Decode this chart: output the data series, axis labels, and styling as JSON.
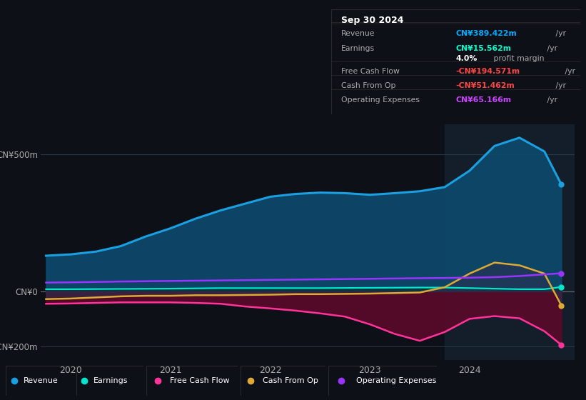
{
  "bg_color": "#0d1117",
  "plot_bg_color": "#0d1117",
  "title_box": {
    "title": "Sep 30 2024",
    "rows": [
      {
        "label": "Revenue",
        "value": "CN¥389.422m",
        "value_color": "#00aaff",
        "suffix": " /yr"
      },
      {
        "label": "Earnings",
        "value": "CN¥15.562m",
        "value_color": "#00ffcc",
        "suffix": " /yr"
      },
      {
        "label": "",
        "value": "4.0%",
        "value_color": "#ffffff",
        "suffix": " profit margin",
        "suffix_color": "#aaaaaa"
      },
      {
        "label": "Free Cash Flow",
        "value": "-CN¥194.571m",
        "value_color": "#ff4444",
        "suffix": " /yr"
      },
      {
        "label": "Cash From Op",
        "value": "-CN¥51.462m",
        "value_color": "#ff4444",
        "suffix": " /yr"
      },
      {
        "label": "Operating Expenses",
        "value": "CN¥65.166m",
        "value_color": "#cc44ff",
        "suffix": " /yr"
      }
    ]
  },
  "xmin": 2019.7,
  "xmax": 2025.05,
  "ymin": -250,
  "ymax": 610,
  "yticks": [
    -200,
    0,
    500
  ],
  "ytick_labels": [
    "-CN¥200m",
    "CN¥0",
    "CN¥500m"
  ],
  "xticks": [
    2020,
    2021,
    2022,
    2023,
    2024
  ],
  "series": {
    "revenue": {
      "color": "#1a9fe0",
      "fill_color": "#0d4a6e",
      "label": "Revenue",
      "x": [
        2019.75,
        2020.0,
        2020.25,
        2020.5,
        2020.75,
        2021.0,
        2021.25,
        2021.5,
        2021.75,
        2022.0,
        2022.25,
        2022.5,
        2022.75,
        2023.0,
        2023.25,
        2023.5,
        2023.75,
        2024.0,
        2024.25,
        2024.5,
        2024.75,
        2024.92
      ],
      "y": [
        130,
        135,
        145,
        165,
        200,
        230,
        265,
        295,
        320,
        345,
        355,
        360,
        358,
        352,
        358,
        365,
        380,
        440,
        530,
        560,
        510,
        390
      ]
    },
    "earnings": {
      "color": "#00e5cc",
      "label": "Earnings",
      "x": [
        2019.75,
        2020.0,
        2020.5,
        2021.0,
        2021.5,
        2022.0,
        2022.5,
        2023.0,
        2023.5,
        2023.75,
        2024.0,
        2024.25,
        2024.5,
        2024.75,
        2024.92
      ],
      "y": [
        8,
        8,
        9,
        10,
        12,
        12,
        12,
        13,
        14,
        14,
        12,
        10,
        8,
        8,
        16
      ]
    },
    "free_cash_flow": {
      "color": "#ff3399",
      "fill_color": "#5a0a2a",
      "label": "Free Cash Flow",
      "x": [
        2019.75,
        2020.0,
        2020.25,
        2020.5,
        2020.75,
        2021.0,
        2021.25,
        2021.5,
        2021.75,
        2022.0,
        2022.25,
        2022.5,
        2022.75,
        2023.0,
        2023.25,
        2023.5,
        2023.75,
        2024.0,
        2024.25,
        2024.5,
        2024.75,
        2024.92
      ],
      "y": [
        -45,
        -44,
        -42,
        -40,
        -40,
        -40,
        -42,
        -45,
        -55,
        -62,
        -70,
        -80,
        -92,
        -120,
        -155,
        -180,
        -148,
        -100,
        -90,
        -98,
        -145,
        -195
      ]
    },
    "cash_from_op": {
      "color": "#ddaa33",
      "label": "Cash From Op",
      "x": [
        2019.75,
        2020.0,
        2020.25,
        2020.5,
        2020.75,
        2021.0,
        2021.25,
        2021.5,
        2021.75,
        2022.0,
        2022.25,
        2022.5,
        2022.75,
        2023.0,
        2023.25,
        2023.5,
        2023.75,
        2024.0,
        2024.25,
        2024.5,
        2024.75,
        2024.92
      ],
      "y": [
        -28,
        -26,
        -22,
        -18,
        -16,
        -16,
        -14,
        -14,
        -13,
        -12,
        -10,
        -10,
        -9,
        -8,
        -6,
        -4,
        15,
        65,
        105,
        95,
        65,
        -51
      ]
    },
    "operating_expenses": {
      "color": "#9933ff",
      "label": "Operating Expenses",
      "x": [
        2019.75,
        2020.0,
        2020.5,
        2021.0,
        2021.5,
        2022.0,
        2022.5,
        2023.0,
        2023.5,
        2024.0,
        2024.25,
        2024.5,
        2024.75,
        2024.92
      ],
      "y": [
        32,
        33,
        36,
        38,
        40,
        42,
        44,
        46,
        48,
        50,
        52,
        56,
        62,
        66
      ]
    }
  },
  "legend_items": [
    {
      "label": "Revenue",
      "color": "#1a9fe0"
    },
    {
      "label": "Earnings",
      "color": "#00e5cc"
    },
    {
      "label": "Free Cash Flow",
      "color": "#ff3399"
    },
    {
      "label": "Cash From Op",
      "color": "#ddaa33"
    },
    {
      "label": "Operating Expenses",
      "color": "#9933ff"
    }
  ],
  "highlight_x": 2023.75,
  "grid_color": "#2a3a4a",
  "text_color": "#aaaaaa",
  "zero_line_color": "#666666"
}
